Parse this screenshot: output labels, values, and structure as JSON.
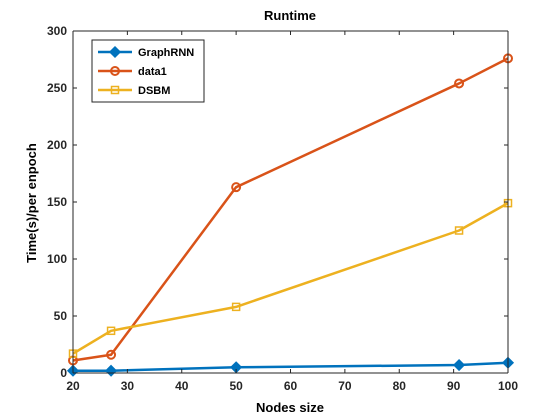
{
  "chart_data": {
    "type": "line",
    "title": "Runtime",
    "xlabel": "Nodes size",
    "ylabel": "Time(s)/per enpoch",
    "xlim": [
      20,
      100
    ],
    "ylim": [
      0,
      300
    ],
    "xticks": [
      20,
      30,
      40,
      50,
      60,
      70,
      80,
      90,
      100
    ],
    "yticks": [
      0,
      50,
      100,
      150,
      200,
      250,
      300
    ],
    "grid": false,
    "legend_position": "top-left",
    "series": [
      {
        "name": "GraphRNN",
        "color": "#0072BD",
        "marker": "diamond",
        "x": [
          20,
          27,
          50,
          91,
          100
        ],
        "y": [
          2,
          2,
          5,
          7,
          9
        ]
      },
      {
        "name": "data1",
        "color": "#D95319",
        "marker": "circle",
        "x": [
          20,
          27,
          50,
          91,
          100
        ],
        "y": [
          11,
          16,
          163,
          254,
          276
        ]
      },
      {
        "name": "DSBM",
        "color": "#EDB120",
        "marker": "square",
        "x": [
          20,
          27,
          50,
          91,
          100
        ],
        "y": [
          17,
          37,
          58,
          125,
          149
        ]
      }
    ]
  }
}
